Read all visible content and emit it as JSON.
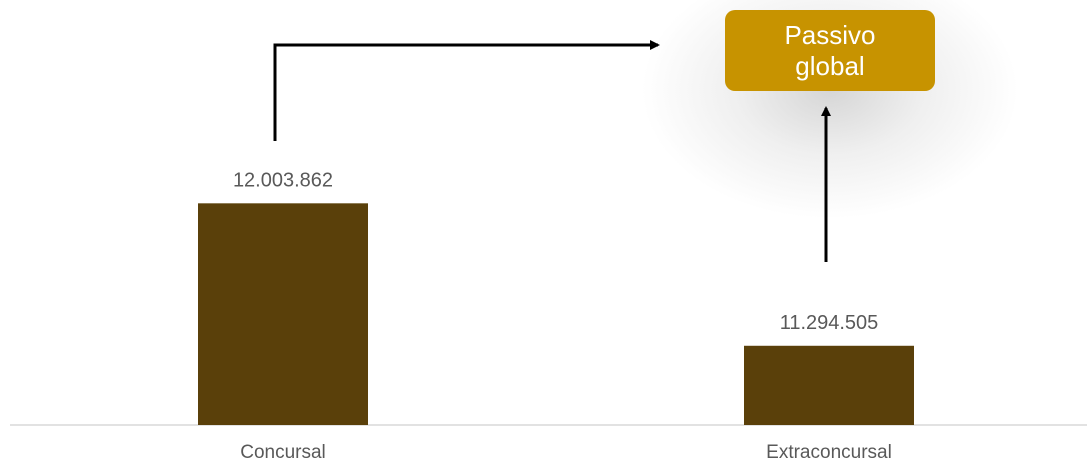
{
  "chart_data": {
    "type": "bar",
    "categories": [
      "Concursal",
      "Extraconcursal"
    ],
    "values": [
      12003862,
      11294505
    ],
    "value_labels": [
      "12.003.862",
      "11.294.505"
    ],
    "title": "",
    "xlabel": "",
    "ylabel": "",
    "ylim": [
      10900000,
      12120000
    ],
    "grid": false,
    "bar_color": "#5a400a",
    "annotation": {
      "text": "Passivo global",
      "color": "#c79300",
      "text_color": "#ffffff"
    }
  }
}
